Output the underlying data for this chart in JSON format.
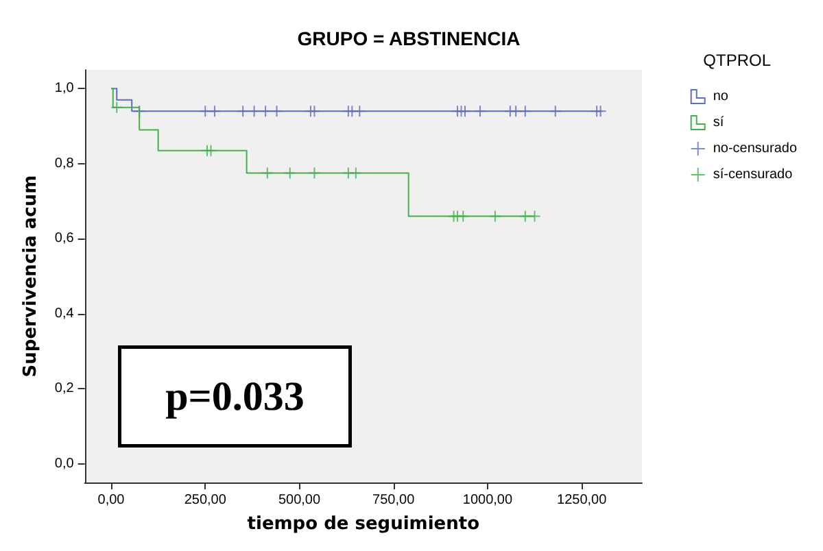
{
  "chart_data": {
    "type": "step",
    "title": "GRUPO = ABSTINENCIA",
    "xlabel": "tiempo de seguimiento",
    "ylabel": "Supervivencia acum",
    "legend_title": "QTPROL",
    "annotations": [
      "p=0.033"
    ],
    "xlim": [
      -70,
      1410
    ],
    "xticks": [
      {
        "value": 0,
        "label": "0,00"
      },
      {
        "value": 250,
        "label": "250,00"
      },
      {
        "value": 500,
        "label": "500,00"
      },
      {
        "value": 750,
        "label": "750,00"
      },
      {
        "value": 1000,
        "label": "1000,00"
      },
      {
        "value": 1250,
        "label": "1250,00"
      }
    ],
    "ylim": [
      -0.05,
      1.05
    ],
    "yticks": [
      {
        "value": 0,
        "label": "0,0"
      },
      {
        "value": 0.2,
        "label": "0,2"
      },
      {
        "value": 0.4,
        "label": "0,4"
      },
      {
        "value": 0.6,
        "label": "0,6"
      },
      {
        "value": 0.8,
        "label": "0,8"
      },
      {
        "value": 1,
        "label": "1,0"
      }
    ],
    "grid": false,
    "legend": "right",
    "series": [
      {
        "name": "no",
        "color": "#5b6ec0",
        "x": [
          0,
          15,
          55,
          1300
        ],
        "values": [
          1,
          0.97,
          0.94,
          0.94
        ]
      },
      {
        "name": "sí",
        "color": "#44b049",
        "x": [
          0,
          5,
          75,
          125,
          360,
          790,
          1125
        ],
        "values": [
          1,
          0.95,
          0.89,
          0.835,
          0.775,
          0.66,
          0.66
        ]
      },
      {
        "name": "no-censurado",
        "type": "scatter",
        "marker": "cross",
        "color": "#5b6ec0",
        "x": [
          75,
          250,
          275,
          350,
          380,
          410,
          440,
          530,
          540,
          630,
          640,
          660,
          920,
          930,
          940,
          980,
          1060,
          1075,
          1100,
          1180,
          1290,
          1300
        ],
        "values": [
          0.94,
          0.94,
          0.94,
          0.94,
          0.94,
          0.94,
          0.94,
          0.94,
          0.94,
          0.94,
          0.94,
          0.94,
          0.94,
          0.94,
          0.94,
          0.94,
          0.94,
          0.94,
          0.94,
          0.94,
          0.94,
          0.94
        ]
      },
      {
        "name": "sí-censurado",
        "type": "scatter",
        "marker": "cross",
        "color": "#44b049",
        "x": [
          15,
          255,
          265,
          415,
          475,
          540,
          630,
          650,
          910,
          920,
          935,
          1020,
          1100,
          1125
        ],
        "values": [
          0.95,
          0.835,
          0.835,
          0.775,
          0.775,
          0.775,
          0.775,
          0.775,
          0.66,
          0.66,
          0.66,
          0.66,
          0.66,
          0.66
        ]
      }
    ]
  }
}
